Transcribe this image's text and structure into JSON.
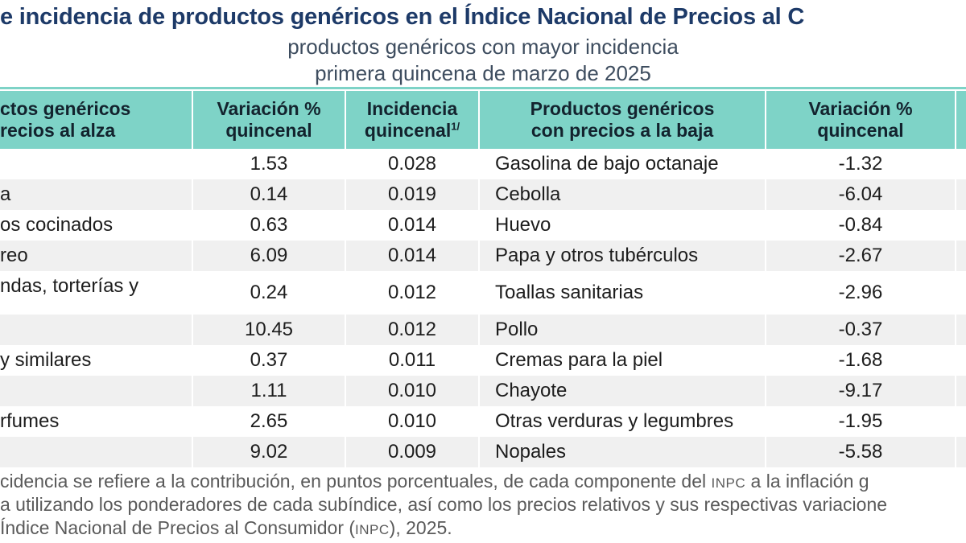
{
  "title": "e incidencia de productos genéricos en el Índice Nacional de Precios al C",
  "subtitle1": "productos genéricos con mayor incidencia",
  "subtitle2": "primera quincena de marzo de 2025",
  "colors": {
    "header_teal": "#7ed3c7",
    "stripe_gray": "#f0f0f0",
    "title_navy": "#1d3a68",
    "footer_gray": "#5a5a5a"
  },
  "table": {
    "headers": {
      "alza_line1": "ctos genéricos",
      "alza_line2": "recios al alza",
      "var_alza_line1": "Variación %",
      "var_alza_line2": "quincenal",
      "inc_line1": "Incidencia",
      "inc_line2": "quincenal",
      "inc_sup": "1/",
      "baja_line1": "Productos genéricos",
      "baja_line2": "con precios a la baja",
      "var_baja_line1": "Variación %",
      "var_baja_line2": "quincenal"
    },
    "rows": [
      {
        "alza": "",
        "var_alza": "1.53",
        "incidencia": "0.028",
        "baja": "Gasolina de bajo octanaje",
        "var_baja": "-1.32",
        "tall": false
      },
      {
        "alza": "a",
        "var_alza": "0.14",
        "incidencia": "0.019",
        "baja": "Cebolla",
        "var_baja": "-6.04",
        "tall": false
      },
      {
        "alza": "os cocinados",
        "var_alza": "0.63",
        "incidencia": "0.014",
        "baja": "Huevo",
        "var_baja": "-0.84",
        "tall": false
      },
      {
        "alza": "reo",
        "var_alza": "6.09",
        "incidencia": "0.014",
        "baja": "Papa y otros tubérculos",
        "var_baja": "-2.67",
        "tall": false
      },
      {
        "alza": "ndas, torterías y",
        "var_alza": "0.24",
        "incidencia": "0.012",
        "baja": "Toallas sanitarias",
        "var_baja": "-2.96",
        "tall": true
      },
      {
        "alza": "",
        "var_alza": "10.45",
        "incidencia": "0.012",
        "baja": "Pollo",
        "var_baja": "-0.37",
        "tall": false
      },
      {
        "alza": "y similares",
        "var_alza": "0.37",
        "incidencia": "0.011",
        "baja": "Cremas para la piel",
        "var_baja": "-1.68",
        "tall": false
      },
      {
        "alza": "",
        "var_alza": "1.11",
        "incidencia": "0.010",
        "baja": "Chayote",
        "var_baja": "-9.17",
        "tall": false
      },
      {
        "alza": "rfumes",
        "var_alza": "2.65",
        "incidencia": "0.010",
        "baja": "Otras verduras y legumbres",
        "var_baja": "-1.95",
        "tall": false
      },
      {
        "alza": "",
        "var_alza": "9.02",
        "incidencia": "0.009",
        "baja": "Nopales",
        "var_baja": "-5.58",
        "tall": false
      }
    ]
  },
  "footnote": {
    "lines": [
      [
        {
          "t": "cidencia se refiere a la contribución, en puntos porcentuales, de cada componente del "
        },
        {
          "t": "INPC",
          "sc": true
        },
        {
          "t": " a la inflación g"
        }
      ],
      [
        {
          "t": "a utilizando los ponderadores de cada subíndice, así como los precios relativos y sus respectivas variacione"
        }
      ],
      [
        {
          "t": "Índice Nacional de Precios al Consumidor ("
        },
        {
          "t": "INPC",
          "sc": true
        },
        {
          "t": "), 2025."
        }
      ]
    ]
  },
  "chart_data": {
    "type": "table",
    "title": "e incidencia de productos genéricos en el Índice Nacional de Precios al C",
    "subtitle": [
      "productos genéricos con mayor incidencia",
      "primera quincena de marzo de 2025"
    ],
    "columns": [
      "ctos genéricos recios al alza",
      "Variación % quincenal",
      "Incidencia quincenal 1/",
      "Productos genéricos con precios a la baja",
      "Variación % quincenal"
    ],
    "rows": [
      [
        "",
        1.53,
        0.028,
        "Gasolina de bajo octanaje",
        -1.32
      ],
      [
        "a",
        0.14,
        0.019,
        "Cebolla",
        -6.04
      ],
      [
        "os cocinados",
        0.63,
        0.014,
        "Huevo",
        -0.84
      ],
      [
        "reo",
        6.09,
        0.014,
        "Papa y otros tubérculos",
        -2.67
      ],
      [
        "ndas, torterías y",
        0.24,
        0.012,
        "Toallas sanitarias",
        -2.96
      ],
      [
        "",
        10.45,
        0.012,
        "Pollo",
        -0.37
      ],
      [
        "y similares",
        0.37,
        0.011,
        "Cremas para la piel",
        -1.68
      ],
      [
        "",
        1.11,
        0.01,
        "Chayote",
        -9.17
      ],
      [
        "rfumes",
        2.65,
        0.01,
        "Otras verduras y legumbres",
        -1.95
      ],
      [
        "",
        9.02,
        0.009,
        "Nopales",
        -5.58
      ]
    ]
  }
}
